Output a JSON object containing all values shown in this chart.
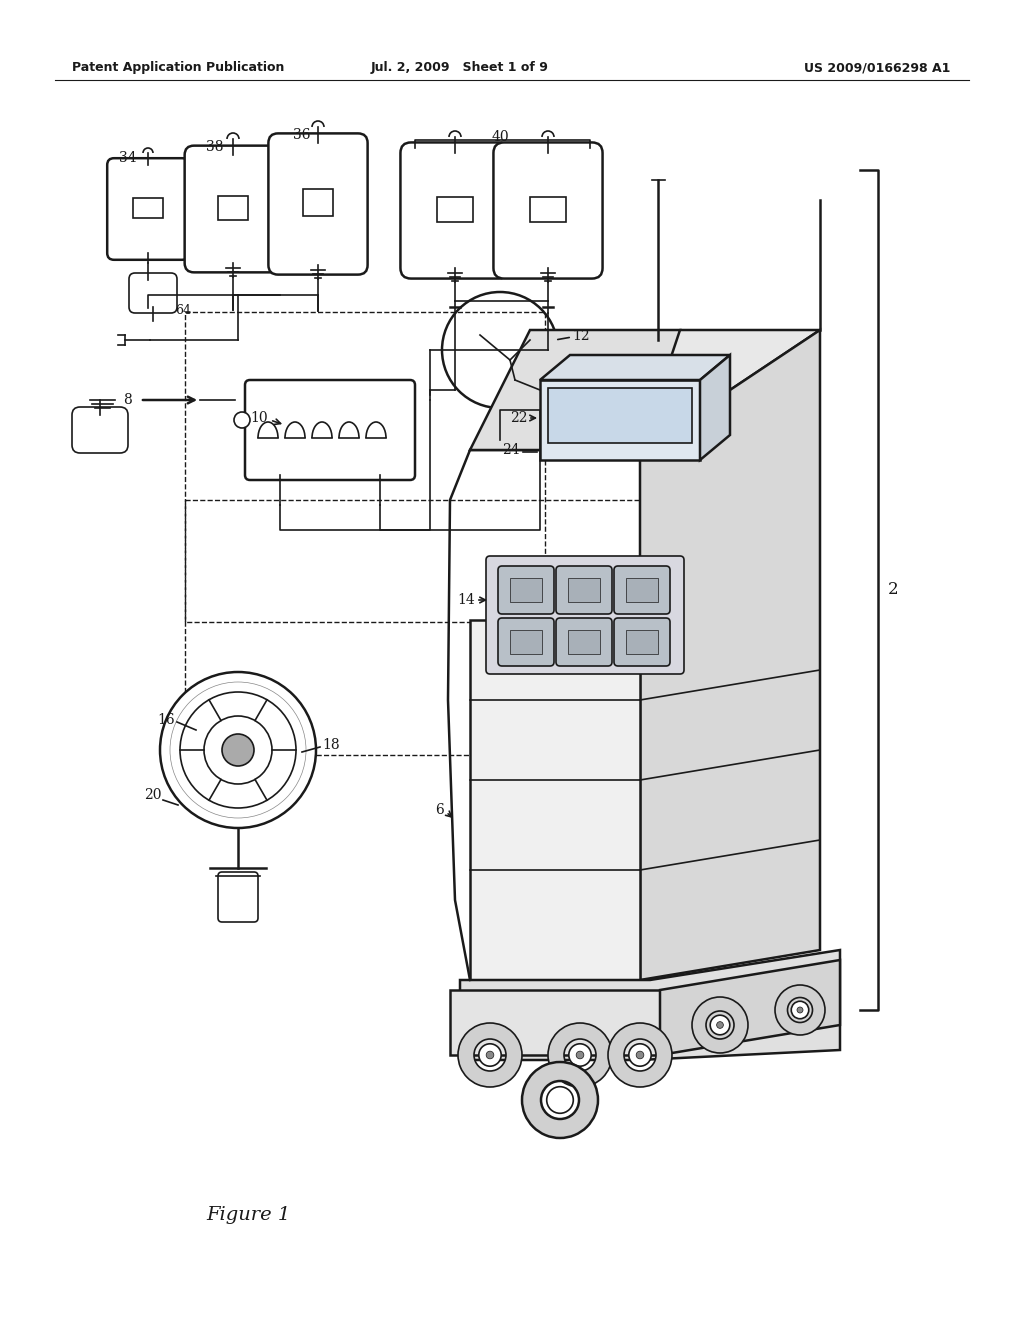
{
  "header_left": "Patent Application Publication",
  "header_center": "Jul. 2, 2009   Sheet 1 of 9",
  "header_right": "US 2009/0166298 A1",
  "figure_label": "Figure 1",
  "bg": "#ffffff",
  "lc": "#1a1a1a",
  "gray": "#888888",
  "lgray": "#cccccc",
  "dgray": "#555555"
}
